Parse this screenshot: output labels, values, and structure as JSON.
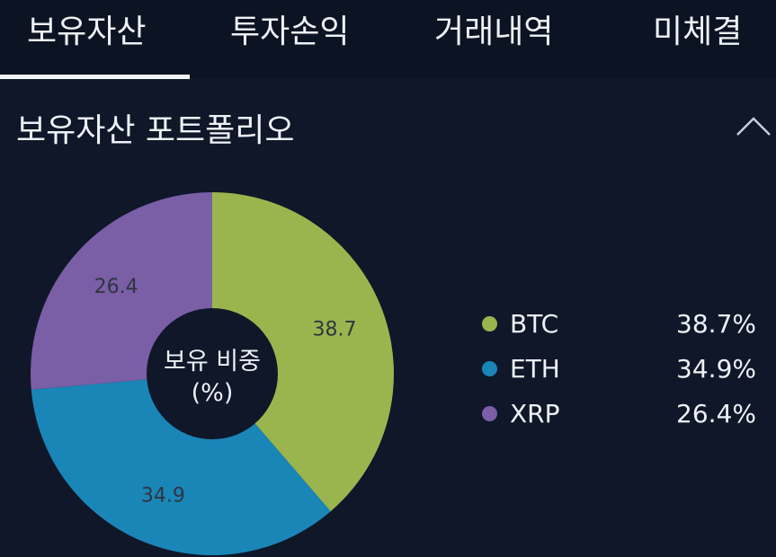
{
  "tabs": [
    {
      "label": "보유자산",
      "active": true
    },
    {
      "label": "투자손익",
      "active": false
    },
    {
      "label": "거래내역",
      "active": false
    },
    {
      "label": "미체결",
      "active": false
    }
  ],
  "section": {
    "title": "보유자산 포트폴리오",
    "collapse_icon": "chevron-up-icon"
  },
  "chart_data": {
    "type": "pie",
    "center_label_line1": "보유 비중",
    "center_label_line2": "(%)",
    "slices": [
      {
        "name": "BTC",
        "value": 38.7,
        "label": "38.7",
        "color": "#9bb54e"
      },
      {
        "name": "ETH",
        "value": 34.9,
        "label": "34.9",
        "color": "#1a86b8"
      },
      {
        "name": "XRP",
        "value": 26.4,
        "label": "26.4",
        "color": "#7a5ea6"
      }
    ]
  },
  "legend": [
    {
      "name": "BTC",
      "value": "38.7%",
      "color": "#9bb54e"
    },
    {
      "name": "ETH",
      "value": "34.9%",
      "color": "#1a86b8"
    },
    {
      "name": "XRP",
      "value": "26.4%",
      "color": "#7a5ea6"
    }
  ],
  "colors": {
    "background": "#0f1729",
    "tab_bar": "#0c1322",
    "text": "#eef1f6",
    "slice_label": "#2f3540"
  }
}
